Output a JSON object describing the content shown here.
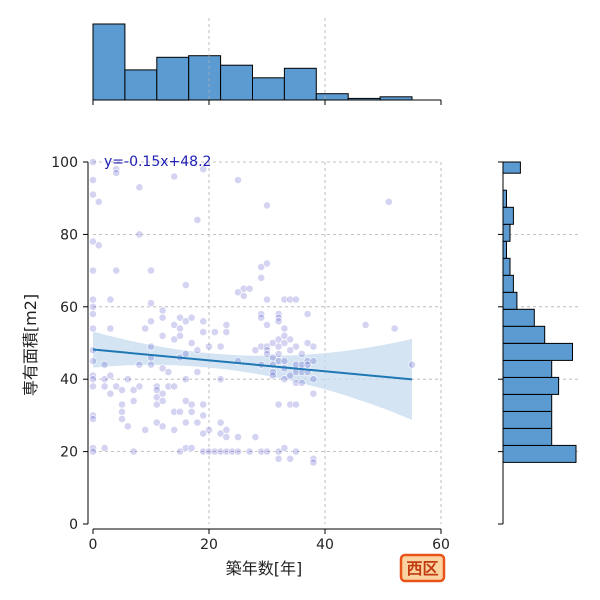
{
  "chart_data": {
    "type": "scatter",
    "xlabel": "築年数[年]",
    "ylabel": "専有面積[m2]",
    "xlim": [
      0,
      60
    ],
    "ylim": [
      0,
      100
    ],
    "xticks": [
      "0",
      "20",
      "40",
      "60"
    ],
    "yticks": [
      "0",
      "20",
      "40",
      "60",
      "80",
      "100"
    ],
    "grid": true,
    "equation": "y=-0.15x+48.2",
    "badge": "西区",
    "regression": {
      "slope": -0.15,
      "intercept": 48.2,
      "x_range": [
        0,
        55
      ]
    },
    "points": [
      [
        0,
        100
      ],
      [
        0,
        95
      ],
      [
        0,
        91
      ],
      [
        1,
        89
      ],
      [
        0,
        78
      ],
      [
        1,
        77
      ],
      [
        0,
        70
      ],
      [
        0,
        62
      ],
      [
        0,
        60
      ],
      [
        0,
        58
      ],
      [
        0,
        54
      ],
      [
        0,
        48
      ],
      [
        0,
        45
      ],
      [
        0,
        41
      ],
      [
        0,
        40
      ],
      [
        0,
        38
      ],
      [
        0,
        30
      ],
      [
        0,
        29
      ],
      [
        0,
        21
      ],
      [
        0,
        20
      ],
      [
        2,
        44
      ],
      [
        2,
        38
      ],
      [
        2,
        21
      ],
      [
        2,
        40
      ],
      [
        3,
        62
      ],
      [
        3,
        54
      ],
      [
        3,
        41
      ],
      [
        3,
        36
      ],
      [
        4,
        98
      ],
      [
        4,
        97
      ],
      [
        4,
        70
      ],
      [
        4,
        38
      ],
      [
        5,
        33
      ],
      [
        5,
        31
      ],
      [
        5,
        29
      ],
      [
        5,
        37
      ],
      [
        6,
        40
      ],
      [
        6,
        27
      ],
      [
        7,
        37
      ],
      [
        7,
        34
      ],
      [
        7,
        20
      ],
      [
        8,
        93
      ],
      [
        8,
        80
      ],
      [
        8,
        44
      ],
      [
        8,
        38
      ],
      [
        9,
        54
      ],
      [
        9,
        26
      ],
      [
        10,
        70
      ],
      [
        10,
        61
      ],
      [
        10,
        56
      ],
      [
        10,
        49
      ],
      [
        10,
        46
      ],
      [
        10,
        44
      ],
      [
        11,
        38
      ],
      [
        11,
        37
      ],
      [
        11,
        35
      ],
      [
        11,
        33
      ],
      [
        11,
        28
      ],
      [
        12,
        59
      ],
      [
        12,
        57
      ],
      [
        12,
        52
      ],
      [
        12,
        43
      ],
      [
        12,
        36
      ],
      [
        12,
        34
      ],
      [
        12,
        27
      ],
      [
        13,
        42
      ],
      [
        13,
        38
      ],
      [
        14,
        96
      ],
      [
        14,
        55
      ],
      [
        14,
        51
      ],
      [
        14,
        38
      ],
      [
        14,
        31
      ],
      [
        14,
        26
      ],
      [
        15,
        57
      ],
      [
        15,
        54
      ],
      [
        15,
        52
      ],
      [
        15,
        46
      ],
      [
        15,
        31
      ],
      [
        15,
        20
      ],
      [
        16,
        66
      ],
      [
        16,
        56
      ],
      [
        16,
        47
      ],
      [
        16,
        40
      ],
      [
        16,
        34
      ],
      [
        16,
        28
      ],
      [
        16,
        21
      ],
      [
        17,
        57
      ],
      [
        17,
        50
      ],
      [
        17,
        33
      ],
      [
        17,
        31
      ],
      [
        17,
        21
      ],
      [
        18,
        84
      ],
      [
        18,
        48
      ],
      [
        18,
        42
      ],
      [
        18,
        28
      ],
      [
        19,
        98
      ],
      [
        19,
        56
      ],
      [
        19,
        53
      ],
      [
        19,
        33
      ],
      [
        19,
        30
      ],
      [
        19,
        25
      ],
      [
        19,
        20
      ],
      [
        20,
        49
      ],
      [
        20,
        26
      ],
      [
        20,
        20
      ],
      [
        21,
        53
      ],
      [
        21,
        20
      ],
      [
        22,
        49
      ],
      [
        22,
        40
      ],
      [
        22,
        28
      ],
      [
        22,
        25
      ],
      [
        22,
        20
      ],
      [
        23,
        55
      ],
      [
        23,
        53
      ],
      [
        23,
        26
      ],
      [
        23,
        24
      ],
      [
        23,
        20
      ],
      [
        24,
        20
      ],
      [
        25,
        95
      ],
      [
        25,
        64
      ],
      [
        25,
        45
      ],
      [
        25,
        24
      ],
      [
        25,
        20
      ],
      [
        26,
        65
      ],
      [
        26,
        63
      ],
      [
        27,
        65
      ],
      [
        27,
        20
      ],
      [
        28,
        48
      ],
      [
        28,
        24
      ],
      [
        29,
        71
      ],
      [
        29,
        68
      ],
      [
        29,
        58
      ],
      [
        29,
        57
      ],
      [
        29,
        49
      ],
      [
        29,
        44
      ],
      [
        29,
        20
      ],
      [
        30,
        88
      ],
      [
        30,
        72
      ],
      [
        30,
        62
      ],
      [
        30,
        55
      ],
      [
        30,
        49
      ],
      [
        30,
        48
      ],
      [
        30,
        47
      ],
      [
        30,
        20
      ],
      [
        31,
        50
      ],
      [
        31,
        46
      ],
      [
        31,
        44
      ],
      [
        31,
        42
      ],
      [
        31,
        41
      ],
      [
        32,
        58
      ],
      [
        32,
        57
      ],
      [
        32,
        56
      ],
      [
        32,
        51
      ],
      [
        32,
        49
      ],
      [
        32,
        47
      ],
      [
        32,
        45
      ],
      [
        32,
        33
      ],
      [
        32,
        20
      ],
      [
        32,
        18
      ],
      [
        33,
        62
      ],
      [
        33,
        54
      ],
      [
        33,
        52
      ],
      [
        33,
        50
      ],
      [
        33,
        45
      ],
      [
        33,
        43
      ],
      [
        33,
        40
      ],
      [
        33,
        21
      ],
      [
        34,
        62
      ],
      [
        34,
        51
      ],
      [
        34,
        48
      ],
      [
        34,
        41
      ],
      [
        34,
        33
      ],
      [
        34,
        18
      ],
      [
        35,
        62
      ],
      [
        35,
        49
      ],
      [
        35,
        44
      ],
      [
        35,
        42
      ],
      [
        35,
        39
      ],
      [
        35,
        33
      ],
      [
        35,
        20
      ],
      [
        36,
        47
      ],
      [
        36,
        44
      ],
      [
        36,
        42
      ],
      [
        36,
        39
      ],
      [
        37,
        58
      ],
      [
        37,
        50
      ],
      [
        37,
        45
      ],
      [
        37,
        44
      ],
      [
        37,
        42
      ],
      [
        38,
        49
      ],
      [
        38,
        45
      ],
      [
        38,
        40
      ],
      [
        38,
        36
      ],
      [
        38,
        18
      ],
      [
        38,
        17
      ],
      [
        47,
        55
      ],
      [
        51,
        89
      ],
      [
        52,
        54
      ],
      [
        55,
        44
      ]
    ],
    "x_histogram": {
      "bin_edges": [
        0,
        5.5,
        11,
        16.5,
        22,
        27.5,
        33,
        38.5,
        44,
        49.5,
        55
      ],
      "counts": [
        48,
        19,
        27,
        28,
        22,
        14,
        20,
        4,
        1,
        2
      ]
    },
    "y_histogram": {
      "bin_edges": [
        17,
        21.7,
        26.4,
        31.1,
        35.8,
        40.5,
        45.2,
        49.9,
        54.6,
        59.3,
        64,
        68.7,
        73.4,
        78.1,
        82.8,
        87.5,
        92.2,
        96.9,
        101.6
      ],
      "counts": [
        21,
        14,
        14,
        14,
        16,
        14,
        20,
        12,
        9,
        4,
        3,
        2,
        1,
        2,
        3,
        1,
        0,
        5
      ]
    }
  },
  "colors": {
    "point": "#3b3bc4",
    "hist_fill": "#5b9bd1",
    "hist_edge": "#000000",
    "regression": "#1f77b4",
    "confidence_band": "#c6dbef",
    "badge_bg": "#fbd3a0",
    "badge_border": "#e8531a",
    "badge_text": "#c23a10",
    "equation_text": "#1f1fb4"
  }
}
